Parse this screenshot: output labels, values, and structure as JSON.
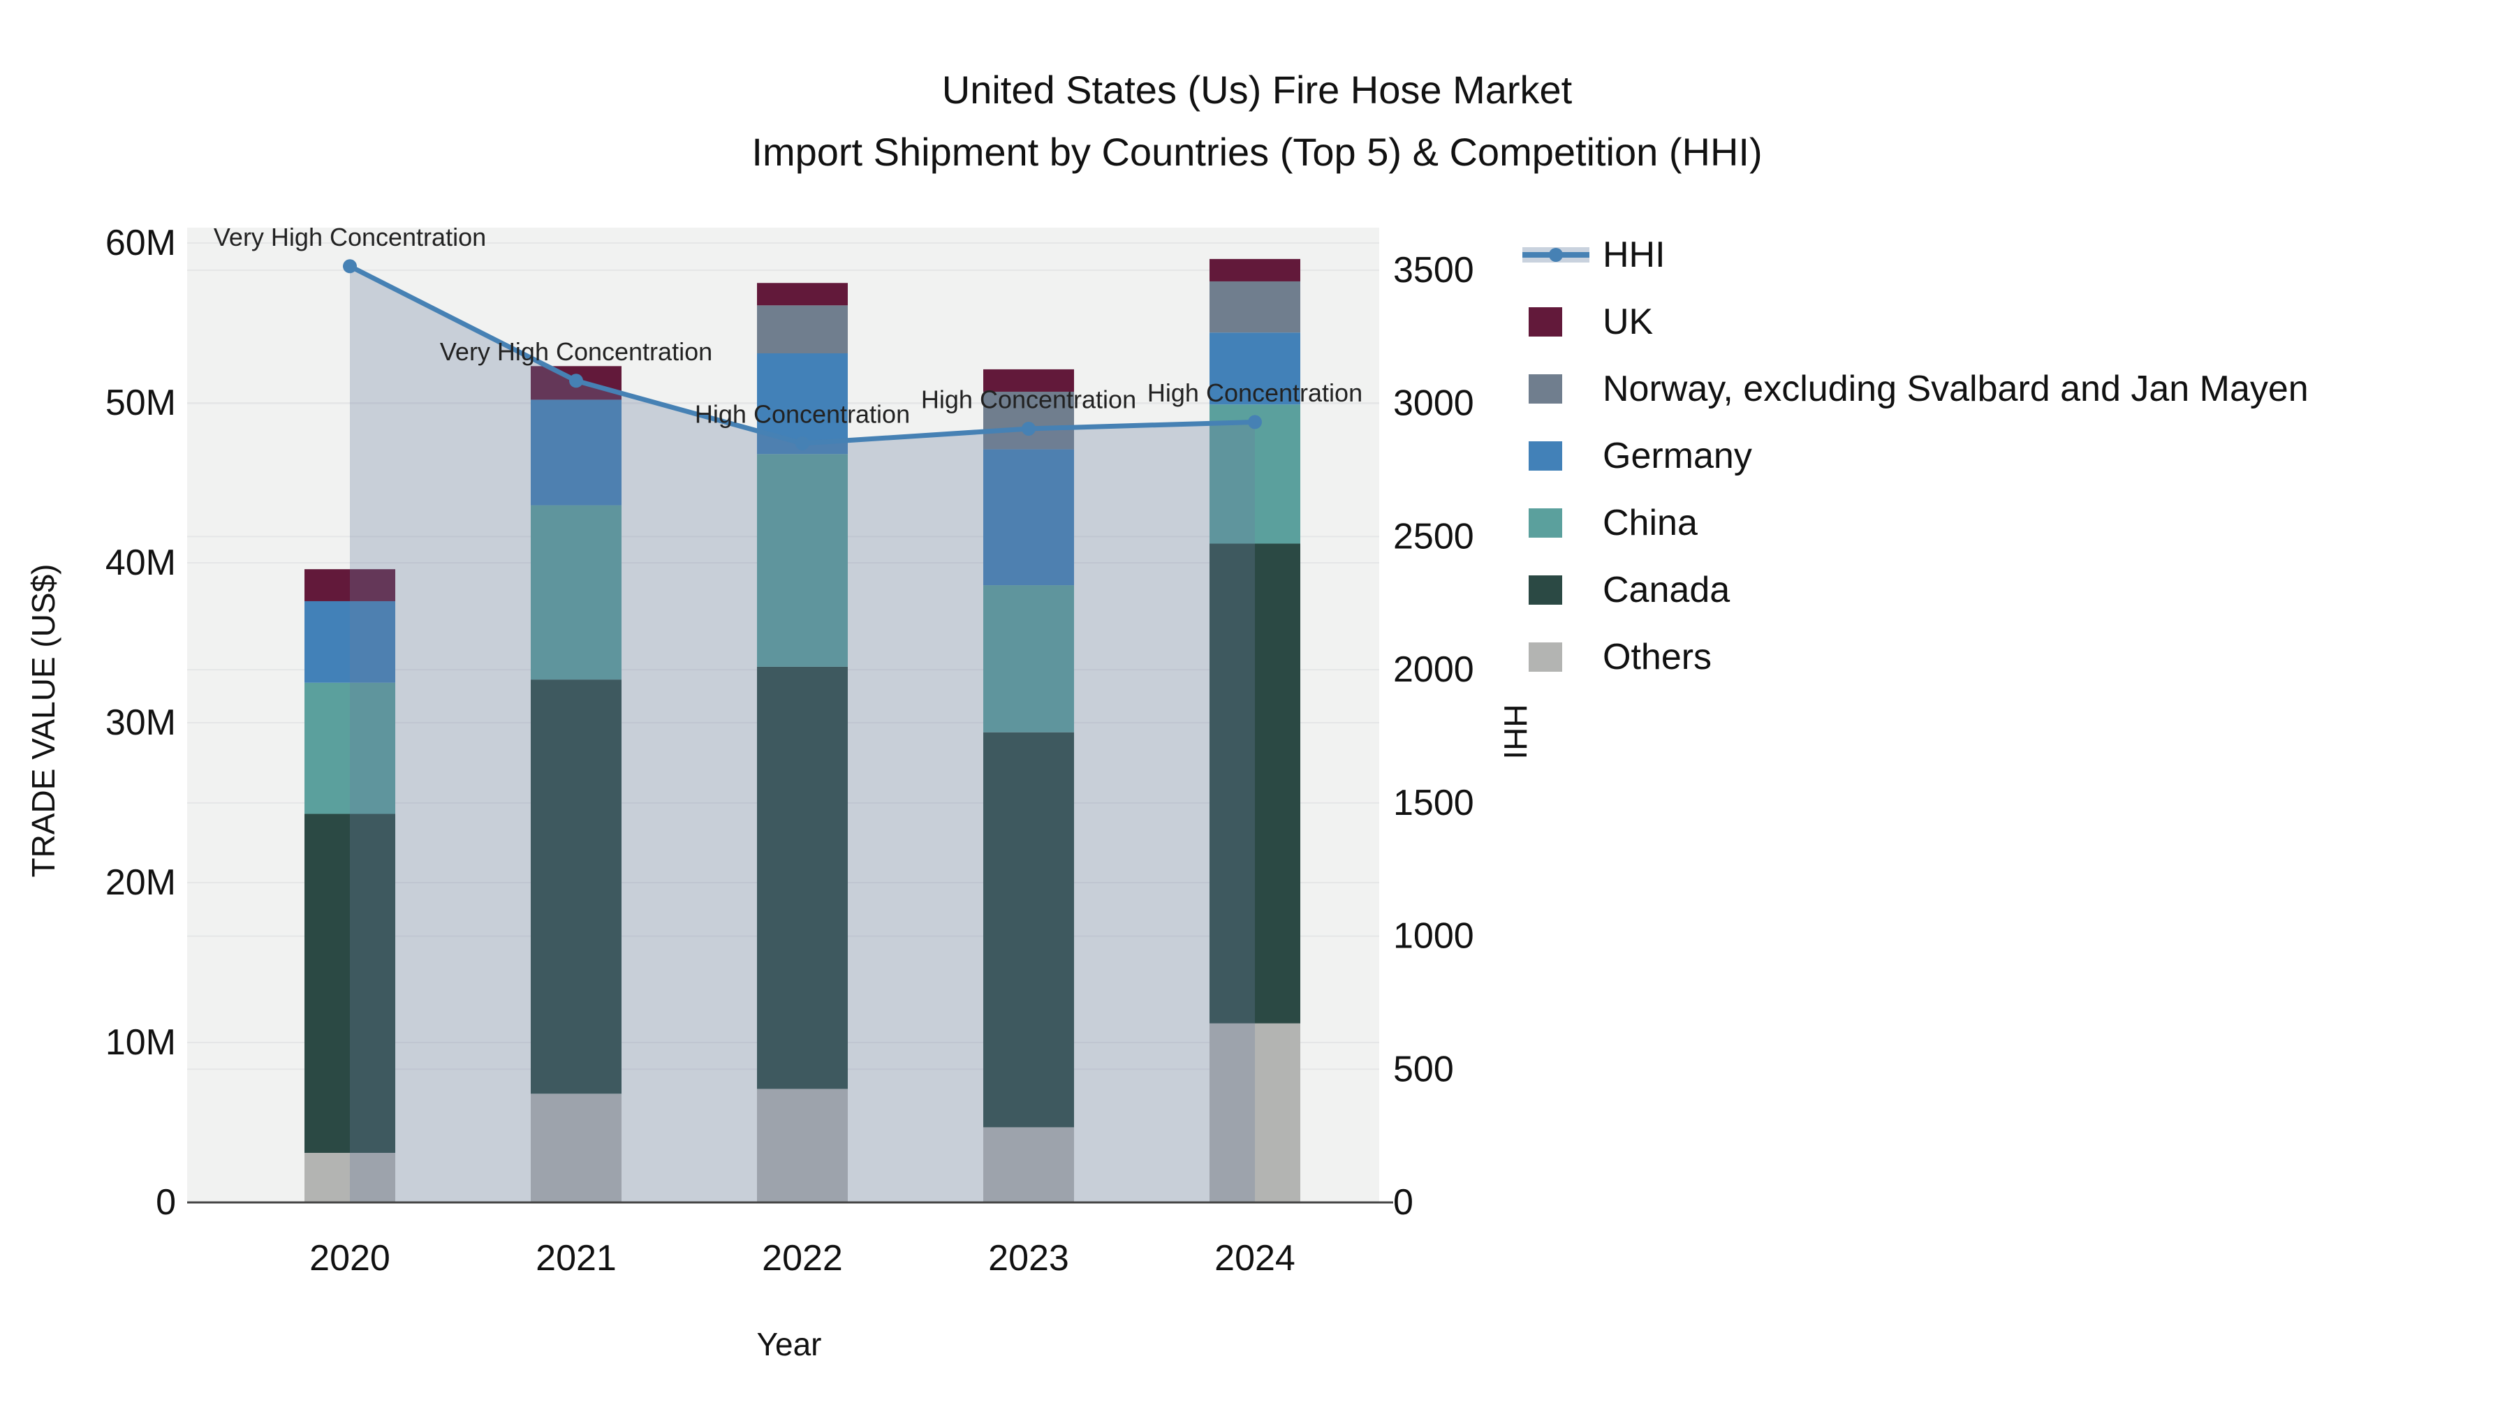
{
  "title": {
    "line1": "United States (Us) Fire Hose Market",
    "line2": "Import Shipment by Countries (Top 5) & Competition (HHI)"
  },
  "chart_data": {
    "type": "combo_stacked_bar_line",
    "x": [
      "2020",
      "2021",
      "2022",
      "2023",
      "2024"
    ],
    "xlabel": "Year",
    "ylabel_left": "TRADE VALUE (US$)",
    "ylabel_right": "HHI",
    "y_left_axis": {
      "unit": "million US$",
      "tick_labels": [
        "0",
        "10M",
        "20M",
        "30M",
        "40M",
        "50M",
        "60M"
      ],
      "tick_values": [
        0,
        10,
        20,
        30,
        40,
        50,
        60
      ],
      "range": [
        0,
        61
      ]
    },
    "y_right_axis": {
      "tick_labels": [
        "0",
        "500",
        "1000",
        "1500",
        "2000",
        "2500",
        "3000",
        "3500"
      ],
      "tick_values": [
        0,
        500,
        1000,
        1500,
        2000,
        2500,
        3000,
        3500
      ],
      "range": [
        0,
        3650
      ]
    },
    "bar_series": [
      {
        "name": "Others",
        "color": "#b3b4b2",
        "values": [
          3.1,
          6.8,
          7.1,
          4.7,
          11.2
        ]
      },
      {
        "name": "Canada",
        "color": "#2b4944",
        "values": [
          21.2,
          25.9,
          26.4,
          24.7,
          30.0
        ]
      },
      {
        "name": "China",
        "color": "#5ba09d",
        "values": [
          8.2,
          10.9,
          13.3,
          9.2,
          8.7
        ]
      },
      {
        "name": "Germany",
        "color": "#4281b8",
        "values": [
          5.1,
          6.6,
          6.3,
          8.5,
          4.5
        ]
      },
      {
        "name": "Norway, excluding Svalbard and Jan Mayen",
        "color": "#707e8e",
        "values": [
          0,
          0,
          3.0,
          3.6,
          3.2
        ]
      },
      {
        "name": "UK",
        "color": "#62193a",
        "values": [
          2.0,
          2.1,
          1.4,
          1.4,
          1.4
        ]
      }
    ],
    "bar_totals": [
      39.6,
      52.3,
      57.5,
      52.1,
      59.0
    ],
    "line_series": {
      "name": "HHI",
      "color": "#4681b4",
      "area_fill_color": "#697d9f",
      "area_fill_opacity": 0.3,
      "values": [
        3515,
        3085,
        2850,
        2905,
        2930
      ]
    },
    "annotations": [
      "Very High Concentration",
      "Very High Concentration",
      "High Concentration",
      "High Concentration",
      "High Concentration"
    ],
    "grid": true,
    "legend_position": "right"
  },
  "legend": {
    "items": [
      {
        "label": "HHI",
        "type": "line",
        "color": "#4681b4"
      },
      {
        "label": "UK",
        "type": "square",
        "color": "#62193a"
      },
      {
        "label": "Norway, excluding Svalbard and Jan Mayen",
        "type": "square",
        "color": "#707e8e"
      },
      {
        "label": "Germany",
        "type": "square",
        "color": "#4281b8"
      },
      {
        "label": "China",
        "type": "square",
        "color": "#5ba09d"
      },
      {
        "label": "Canada",
        "type": "square",
        "color": "#2b4944"
      },
      {
        "label": "Others",
        "type": "square",
        "color": "#b3b4b2"
      }
    ]
  },
  "colors": {
    "plot_bg": "#f1f2f1",
    "grid_line": "#e5e6e7",
    "axis_line": "#444444",
    "text": "#111111",
    "annotation_text": "#222222"
  }
}
